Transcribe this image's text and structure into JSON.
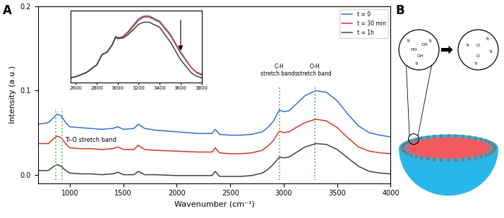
{
  "panel_labels": [
    "A",
    "B"
  ],
  "chart_data": [
    {
      "type": "line",
      "x_label": "Wavenumber (cm⁻¹)",
      "y_label": "Intensity (a.u.)",
      "x": [
        700,
        800,
        850,
        880,
        920,
        960,
        1000,
        1100,
        1200,
        1300,
        1400,
        1450,
        1500,
        1600,
        1640,
        1700,
        1800,
        2000,
        2200,
        2330,
        2360,
        2400,
        2500,
        2600,
        2700,
        2800,
        2850,
        2900,
        2960,
        3000,
        3050,
        3100,
        3200,
        3300,
        3400,
        3500,
        3600,
        3700,
        3800,
        3900,
        4000
      ],
      "series": [
        {
          "name": "t = 0",
          "color": "#2f6fd6",
          "values": [
            0.06,
            0.062,
            0.068,
            0.072,
            0.07,
            0.062,
            0.057,
            0.056,
            0.055,
            0.054,
            0.055,
            0.057,
            0.054,
            0.055,
            0.06,
            0.055,
            0.053,
            0.051,
            0.049,
            0.049,
            0.054,
            0.048,
            0.047,
            0.047,
            0.048,
            0.051,
            0.056,
            0.063,
            0.077,
            0.075,
            0.076,
            0.082,
            0.094,
            0.1,
            0.098,
            0.088,
            0.072,
            0.058,
            0.05,
            0.047,
            0.045
          ]
        },
        {
          "name": "t = 30 min",
          "color": "#d9342b",
          "values": [
            0.037,
            0.037,
            0.043,
            0.046,
            0.044,
            0.037,
            0.032,
            0.031,
            0.031,
            0.03,
            0.031,
            0.033,
            0.03,
            0.03,
            0.035,
            0.03,
            0.029,
            0.028,
            0.027,
            0.027,
            0.032,
            0.026,
            0.025,
            0.025,
            0.026,
            0.029,
            0.034,
            0.04,
            0.052,
            0.05,
            0.051,
            0.055,
            0.062,
            0.066,
            0.064,
            0.056,
            0.044,
            0.033,
            0.028,
            0.026,
            0.025
          ]
        },
        {
          "name": "t = 1h",
          "color": "#404040",
          "values": [
            0.005,
            0.005,
            0.01,
            0.012,
            0.01,
            0.005,
            0.002,
            0.001,
            0.001,
            0.0,
            0.001,
            0.003,
            0.0,
            0.0,
            0.004,
            0.0,
            0.0,
            -0.001,
            -0.001,
            -0.001,
            0.004,
            -0.002,
            -0.002,
            -0.002,
            -0.001,
            0.002,
            0.006,
            0.012,
            0.021,
            0.02,
            0.021,
            0.025,
            0.033,
            0.037,
            0.036,
            0.03,
            0.02,
            0.01,
            0.004,
            0.002,
            0.001
          ]
        }
      ],
      "xlim": [
        700,
        4000
      ],
      "ylim": [
        -0.01,
        0.2
      ],
      "xticks": [
        1000,
        1500,
        2000,
        2500,
        3000,
        3500,
        4000
      ],
      "yticks": [
        0.0,
        0.1,
        0.2
      ],
      "legend": "upper right",
      "annotations": [
        {
          "text": "Ti-O stretch band",
          "lines": [
            870,
            925
          ]
        },
        {
          "text": "C-H\nstretch bands",
          "lines": [
            2960
          ]
        },
        {
          "text": "O-H\nstretch band",
          "lines": [
            3290
          ]
        }
      ]
    },
    {
      "type": "line",
      "tick_labels": "x",
      "x": [
        2550,
        2600,
        2700,
        2800,
        2850,
        2900,
        2950,
        2980,
        3000,
        3050,
        3100,
        3200,
        3250,
        3300,
        3400,
        3500,
        3600,
        3700,
        3750,
        3800
      ],
      "series": [
        {
          "color": "#2f6fd6",
          "values": [
            0.01,
            0.012,
            0.02,
            0.035,
            0.055,
            0.06,
            0.075,
            0.09,
            0.088,
            0.09,
            0.1,
            0.125,
            0.13,
            0.13,
            0.12,
            0.095,
            0.06,
            0.03,
            0.02,
            0.015
          ]
        },
        {
          "color": "#d9342b",
          "values": [
            0.01,
            0.012,
            0.02,
            0.035,
            0.055,
            0.06,
            0.075,
            0.09,
            0.087,
            0.089,
            0.098,
            0.122,
            0.128,
            0.128,
            0.118,
            0.093,
            0.058,
            0.03,
            0.021,
            0.017
          ]
        },
        {
          "color": "#404040",
          "values": [
            0.01,
            0.012,
            0.02,
            0.035,
            0.055,
            0.06,
            0.075,
            0.089,
            0.086,
            0.087,
            0.094,
            0.114,
            0.118,
            0.118,
            0.108,
            0.08,
            0.045,
            0.02,
            0.013,
            0.01
          ]
        }
      ],
      "xlim": [
        2550,
        3800
      ],
      "ylim": [
        0,
        0.14
      ],
      "xticks": [
        2600,
        2800,
        3000,
        3200,
        3400,
        3600,
        3800
      ]
    }
  ],
  "diagram": {
    "before": [
      "Ti",
      "HO",
      "OH",
      "Ti",
      "OH",
      "Ti"
    ],
    "after": [
      "Ti",
      "Ti",
      "O",
      "Ti",
      "O",
      "Ti"
    ]
  }
}
